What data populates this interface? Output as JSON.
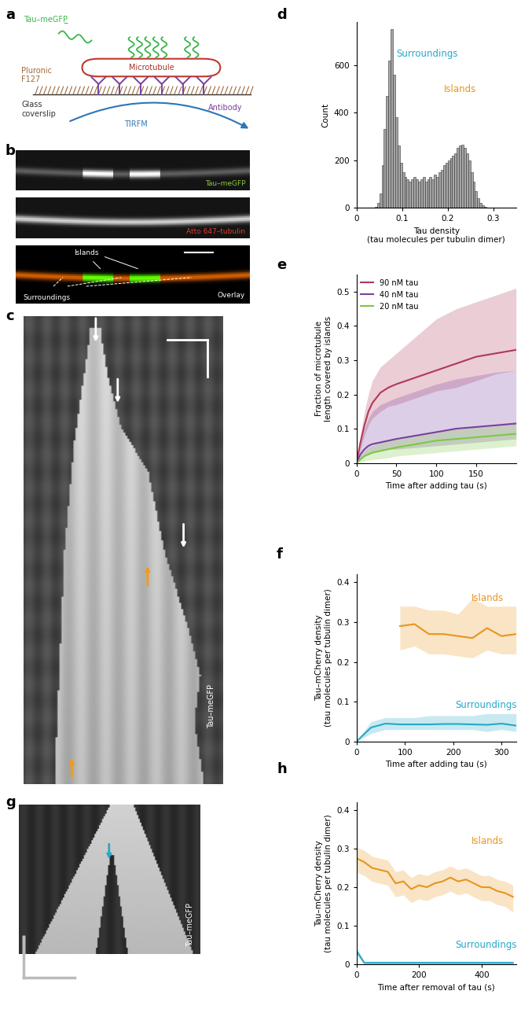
{
  "panel_labels": [
    "a",
    "b",
    "c",
    "d",
    "e",
    "f",
    "g",
    "h"
  ],
  "schematic": {
    "tau": "Tau–meGFP",
    "tau_charge": "–",
    "microtubule": "Microtubule",
    "pluronic": "Pluronic\nF127",
    "glass": "Glass\ncoverslip",
    "tirfm": "TIRFM",
    "antibody": "Antibody"
  },
  "images": {
    "b": {
      "channels": [
        "Tau–meGFP",
        "Atto 647–tubulin",
        "Overlay"
      ],
      "islands": "Islands",
      "surroundings": "Surroundings"
    },
    "c": {
      "label": "Tau–meGFP"
    },
    "g": {
      "label": "Tau–meGFP"
    }
  },
  "chart_data": [
    {
      "type": "histogram",
      "x_label": "Tau density\n(tau molecules per tubulin dimer)",
      "y_label": "Count",
      "color": "#a6a6a6",
      "bins": [
        0.04,
        0.045,
        0.05,
        0.055,
        0.06,
        0.065,
        0.07,
        0.075,
        0.08,
        0.085,
        0.09,
        0.095,
        0.1,
        0.105,
        0.11,
        0.115,
        0.12,
        0.125,
        0.13,
        0.135,
        0.14,
        0.145,
        0.15,
        0.155,
        0.16,
        0.165,
        0.17,
        0.175,
        0.18,
        0.185,
        0.19,
        0.195,
        0.2,
        0.205,
        0.21,
        0.215,
        0.22,
        0.225,
        0.23,
        0.235,
        0.24,
        0.245,
        0.25,
        0.255,
        0.26,
        0.265,
        0.27,
        0.275,
        0.28,
        0.285
      ],
      "counts": [
        5,
        20,
        60,
        180,
        330,
        470,
        620,
        750,
        560,
        380,
        260,
        190,
        150,
        130,
        120,
        110,
        120,
        130,
        120,
        110,
        120,
        130,
        110,
        120,
        130,
        120,
        140,
        130,
        150,
        160,
        180,
        190,
        200,
        210,
        220,
        230,
        250,
        260,
        265,
        250,
        230,
        200,
        150,
        110,
        70,
        40,
        20,
        10,
        3
      ],
      "xlim": [
        0,
        0.35
      ],
      "xticks": [
        0,
        0.1,
        0.2,
        0.3
      ],
      "ylim": [
        0,
        780
      ],
      "yticks": [
        0,
        200,
        400,
        600
      ],
      "annotations": [
        {
          "text": "Surroundings",
          "color": "#26a9c7"
        },
        {
          "text": "Islands",
          "color": "#e8951e"
        }
      ]
    },
    {
      "type": "line",
      "x_label": "Time after adding tau (s)",
      "y_label": "Fraction of microtubule\nlength covered by islands",
      "xlim": [
        0,
        200
      ],
      "xticks": [
        0,
        50,
        100,
        150
      ],
      "ylim": [
        0,
        0.55
      ],
      "yticks": [
        0,
        0.1,
        0.2,
        0.3,
        0.4,
        0.5
      ],
      "legend": "upper left",
      "series": [
        {
          "name": "90 nM tau",
          "color": "#b0385a",
          "x": [
            0,
            5,
            10,
            15,
            20,
            30,
            40,
            50,
            75,
            100,
            125,
            150,
            175,
            200
          ],
          "values": [
            0,
            0.06,
            0.11,
            0.15,
            0.175,
            0.205,
            0.22,
            0.23,
            0.25,
            0.27,
            0.29,
            0.31,
            0.32,
            0.33
          ],
          "lower": [
            0,
            0.04,
            0.08,
            0.11,
            0.13,
            0.15,
            0.165,
            0.17,
            0.19,
            0.21,
            0.22,
            0.24,
            0.26,
            0.27
          ],
          "upper": [
            0,
            0.08,
            0.15,
            0.2,
            0.24,
            0.28,
            0.3,
            0.32,
            0.37,
            0.42,
            0.45,
            0.47,
            0.49,
            0.51
          ]
        },
        {
          "name": "40 nM tau",
          "color": "#7b3fa0",
          "x": [
            0,
            5,
            10,
            15,
            20,
            30,
            40,
            50,
            75,
            100,
            125,
            150,
            175,
            200
          ],
          "values": [
            0,
            0.025,
            0.04,
            0.05,
            0.055,
            0.06,
            0.065,
            0.07,
            0.08,
            0.09,
            0.1,
            0.105,
            0.11,
            0.115
          ],
          "lower": [
            0,
            0.01,
            0.02,
            0.025,
            0.03,
            0.035,
            0.04,
            0.04,
            0.045,
            0.05,
            0.055,
            0.06,
            0.065,
            0.07
          ],
          "upper": [
            0,
            0.06,
            0.1,
            0.13,
            0.15,
            0.17,
            0.18,
            0.19,
            0.21,
            0.23,
            0.245,
            0.255,
            0.265,
            0.27
          ]
        },
        {
          "name": "20 nM tau",
          "color": "#7ac943",
          "x": [
            0,
            5,
            10,
            15,
            20,
            30,
            40,
            50,
            75,
            100,
            125,
            150,
            175,
            200
          ],
          "values": [
            0,
            0.01,
            0.02,
            0.025,
            0.03,
            0.035,
            0.04,
            0.045,
            0.055,
            0.065,
            0.07,
            0.075,
            0.08,
            0.085
          ],
          "lower": [
            0,
            0.002,
            0.005,
            0.008,
            0.01,
            0.012,
            0.015,
            0.02,
            0.025,
            0.03,
            0.035,
            0.04,
            0.045,
            0.05
          ],
          "upper": [
            0,
            0.02,
            0.035,
            0.045,
            0.05,
            0.06,
            0.065,
            0.07,
            0.08,
            0.09,
            0.1,
            0.105,
            0.11,
            0.12
          ]
        }
      ]
    },
    {
      "type": "line",
      "x_label": "Time after adding tau (s)",
      "y_label": "Tau–mCherry density\n(tau molecules per tubulin dimer)",
      "xlim": [
        0,
        330
      ],
      "xticks": [
        0,
        100,
        200,
        300
      ],
      "ylim": [
        0,
        0.42
      ],
      "yticks": [
        0,
        0.1,
        0.2,
        0.3,
        0.4
      ],
      "series": [
        {
          "name": "Islands",
          "color": "#e8951e",
          "x": [
            90,
            120,
            150,
            180,
            210,
            240,
            270,
            300,
            330
          ],
          "values": [
            0.29,
            0.295,
            0.27,
            0.27,
            0.265,
            0.26,
            0.285,
            0.265,
            0.27
          ],
          "lower": [
            0.23,
            0.24,
            0.22,
            0.22,
            0.215,
            0.21,
            0.23,
            0.22,
            0.22
          ],
          "upper": [
            0.34,
            0.34,
            0.33,
            0.33,
            0.32,
            0.36,
            0.34,
            0.34,
            0.34
          ]
        },
        {
          "name": "Surroundings",
          "color": "#26a9c7",
          "x": [
            0,
            30,
            60,
            90,
            120,
            150,
            180,
            210,
            240,
            270,
            300,
            330
          ],
          "values": [
            0,
            0.035,
            0.045,
            0.043,
            0.043,
            0.043,
            0.044,
            0.044,
            0.043,
            0.042,
            0.045,
            0.04
          ],
          "lower": [
            0,
            0.02,
            0.03,
            0.03,
            0.03,
            0.03,
            0.03,
            0.03,
            0.03,
            0.025,
            0.03,
            0.025
          ],
          "upper": [
            0,
            0.05,
            0.06,
            0.06,
            0.06,
            0.065,
            0.065,
            0.065,
            0.065,
            0.07,
            0.07,
            0.07
          ]
        }
      ]
    },
    {
      "type": "line",
      "x_label": "Time after removal of tau (s)",
      "y_label": "Tau–mCherry density\n(tau molecules per tubulin dimer)",
      "xlim": [
        0,
        510
      ],
      "xticks": [
        0,
        200,
        400
      ],
      "ylim": [
        0,
        0.42
      ],
      "yticks": [
        0,
        0.1,
        0.2,
        0.3,
        0.4
      ],
      "series": [
        {
          "name": "Islands",
          "color": "#e8951e",
          "x": [
            0,
            25,
            50,
            75,
            100,
            125,
            150,
            175,
            200,
            225,
            250,
            275,
            300,
            325,
            350,
            375,
            400,
            425,
            450,
            475,
            500
          ],
          "values": [
            0.275,
            0.265,
            0.25,
            0.245,
            0.24,
            0.21,
            0.215,
            0.195,
            0.205,
            0.2,
            0.21,
            0.215,
            0.225,
            0.215,
            0.22,
            0.21,
            0.2,
            0.2,
            0.19,
            0.185,
            0.175
          ],
          "lower": [
            0.24,
            0.23,
            0.215,
            0.21,
            0.205,
            0.175,
            0.18,
            0.16,
            0.17,
            0.165,
            0.175,
            0.18,
            0.19,
            0.18,
            0.185,
            0.175,
            0.165,
            0.165,
            0.155,
            0.15,
            0.135
          ],
          "upper": [
            0.305,
            0.295,
            0.28,
            0.275,
            0.27,
            0.24,
            0.245,
            0.225,
            0.235,
            0.23,
            0.24,
            0.245,
            0.255,
            0.245,
            0.25,
            0.24,
            0.23,
            0.23,
            0.22,
            0.215,
            0.205
          ]
        },
        {
          "name": "Surroundings",
          "color": "#26a9c7",
          "x": [
            0,
            25,
            50,
            75,
            100,
            125,
            150,
            175,
            200,
            225,
            250,
            275,
            300,
            325,
            350,
            375,
            400,
            425,
            450,
            475,
            500
          ],
          "values": [
            0.035,
            0.004,
            0.004,
            0.004,
            0.004,
            0.004,
            0.004,
            0.004,
            0.004,
            0.004,
            0.004,
            0.004,
            0.004,
            0.004,
            0.004,
            0.004,
            0.004,
            0.004,
            0.004,
            0.004,
            0.004
          ],
          "lower": [
            0.025,
            0.001,
            0.001,
            0.001,
            0.001,
            0.001,
            0.001,
            0.001,
            0.001,
            0.001,
            0.001,
            0.001,
            0.001,
            0.001,
            0.001,
            0.001,
            0.001,
            0.001,
            0.001,
            0.001,
            0.001
          ],
          "upper": [
            0.045,
            0.008,
            0.008,
            0.008,
            0.008,
            0.008,
            0.008,
            0.008,
            0.008,
            0.008,
            0.008,
            0.008,
            0.008,
            0.008,
            0.008,
            0.008,
            0.008,
            0.008,
            0.008,
            0.008,
            0.008
          ]
        }
      ]
    }
  ]
}
